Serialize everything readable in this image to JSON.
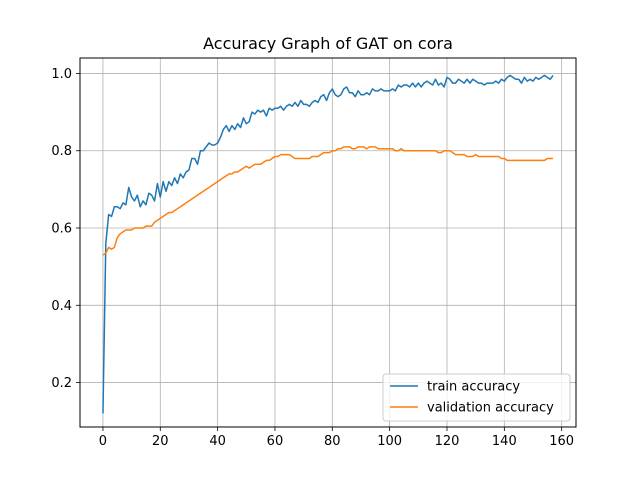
{
  "chart_data": {
    "type": "line",
    "title": "Accuracy Graph of GAT on cora",
    "xlabel": "",
    "ylabel": "",
    "xlim": [
      -8,
      165
    ],
    "ylim": [
      0.085,
      1.04
    ],
    "xticks": [
      0,
      20,
      40,
      60,
      80,
      100,
      120,
      140,
      160
    ],
    "yticks": [
      0.2,
      0.4,
      0.6,
      0.8,
      1.0
    ],
    "ytick_labels": [
      "0.2",
      "0.4",
      "0.6",
      "0.8",
      "1.0"
    ],
    "grid": true,
    "legend_position": "lower-right",
    "series": [
      {
        "name": "train accuracy",
        "color": "#1f77b4",
        "points": [
          [
            0,
            0.12
          ],
          [
            1,
            0.56
          ],
          [
            2,
            0.635
          ],
          [
            3,
            0.63
          ],
          [
            4,
            0.655
          ],
          [
            5,
            0.655
          ],
          [
            6,
            0.65
          ],
          [
            7,
            0.665
          ],
          [
            8,
            0.66
          ],
          [
            9,
            0.705
          ],
          [
            10,
            0.68
          ],
          [
            11,
            0.67
          ],
          [
            12,
            0.685
          ],
          [
            13,
            0.655
          ],
          [
            14,
            0.67
          ],
          [
            15,
            0.66
          ],
          [
            16,
            0.69
          ],
          [
            17,
            0.685
          ],
          [
            18,
            0.67
          ],
          [
            19,
            0.715
          ],
          [
            20,
            0.68
          ],
          [
            21,
            0.72
          ],
          [
            22,
            0.695
          ],
          [
            23,
            0.72
          ],
          [
            24,
            0.71
          ],
          [
            25,
            0.73
          ],
          [
            26,
            0.715
          ],
          [
            27,
            0.74
          ],
          [
            28,
            0.73
          ],
          [
            29,
            0.745
          ],
          [
            30,
            0.75
          ],
          [
            31,
            0.78
          ],
          [
            32,
            0.78
          ],
          [
            33,
            0.765
          ],
          [
            34,
            0.8
          ],
          [
            35,
            0.8
          ],
          [
            36,
            0.81
          ],
          [
            37,
            0.82
          ],
          [
            38,
            0.815
          ],
          [
            39,
            0.815
          ],
          [
            40,
            0.82
          ],
          [
            41,
            0.835
          ],
          [
            42,
            0.855
          ],
          [
            43,
            0.865
          ],
          [
            44,
            0.85
          ],
          [
            45,
            0.865
          ],
          [
            46,
            0.855
          ],
          [
            47,
            0.87
          ],
          [
            48,
            0.86
          ],
          [
            49,
            0.885
          ],
          [
            50,
            0.87
          ],
          [
            51,
            0.875
          ],
          [
            52,
            0.9
          ],
          [
            53,
            0.895
          ],
          [
            54,
            0.905
          ],
          [
            55,
            0.9
          ],
          [
            56,
            0.905
          ],
          [
            57,
            0.89
          ],
          [
            58,
            0.91
          ],
          [
            59,
            0.905
          ],
          [
            60,
            0.91
          ],
          [
            61,
            0.91
          ],
          [
            62,
            0.915
          ],
          [
            63,
            0.905
          ],
          [
            64,
            0.915
          ],
          [
            65,
            0.92
          ],
          [
            66,
            0.915
          ],
          [
            67,
            0.925
          ],
          [
            68,
            0.915
          ],
          [
            69,
            0.93
          ],
          [
            70,
            0.92
          ],
          [
            71,
            0.92
          ],
          [
            72,
            0.915
          ],
          [
            73,
            0.925
          ],
          [
            74,
            0.93
          ],
          [
            75,
            0.925
          ],
          [
            76,
            0.94
          ],
          [
            77,
            0.945
          ],
          [
            78,
            0.93
          ],
          [
            79,
            0.95
          ],
          [
            80,
            0.96
          ],
          [
            81,
            0.945
          ],
          [
            82,
            0.94
          ],
          [
            83,
            0.945
          ],
          [
            84,
            0.96
          ],
          [
            85,
            0.965
          ],
          [
            86,
            0.95
          ],
          [
            87,
            0.95
          ],
          [
            88,
            0.94
          ],
          [
            89,
            0.955
          ],
          [
            90,
            0.945
          ],
          [
            91,
            0.945
          ],
          [
            92,
            0.95
          ],
          [
            93,
            0.945
          ],
          [
            94,
            0.96
          ],
          [
            95,
            0.955
          ],
          [
            96,
            0.955
          ],
          [
            97,
            0.96
          ],
          [
            98,
            0.955
          ],
          [
            99,
            0.955
          ],
          [
            100,
            0.955
          ],
          [
            101,
            0.96
          ],
          [
            102,
            0.955
          ],
          [
            103,
            0.97
          ],
          [
            104,
            0.965
          ],
          [
            105,
            0.97
          ],
          [
            106,
            0.97
          ],
          [
            107,
            0.965
          ],
          [
            108,
            0.975
          ],
          [
            109,
            0.965
          ],
          [
            110,
            0.975
          ],
          [
            111,
            0.965
          ],
          [
            112,
            0.975
          ],
          [
            113,
            0.98
          ],
          [
            114,
            0.975
          ],
          [
            115,
            0.97
          ],
          [
            116,
            0.985
          ],
          [
            117,
            0.97
          ],
          [
            118,
            0.975
          ],
          [
            119,
            0.965
          ],
          [
            120,
            0.99
          ],
          [
            121,
            0.985
          ],
          [
            122,
            0.975
          ],
          [
            123,
            0.975
          ],
          [
            124,
            0.985
          ],
          [
            125,
            0.98
          ],
          [
            126,
            0.975
          ],
          [
            127,
            0.985
          ],
          [
            128,
            0.975
          ],
          [
            129,
            0.985
          ],
          [
            130,
            0.98
          ],
          [
            131,
            0.975
          ],
          [
            132,
            0.975
          ],
          [
            133,
            0.97
          ],
          [
            134,
            0.975
          ],
          [
            135,
            0.975
          ],
          [
            136,
            0.975
          ],
          [
            137,
            0.98
          ],
          [
            138,
            0.975
          ],
          [
            139,
            0.985
          ],
          [
            140,
            0.98
          ],
          [
            141,
            0.99
          ],
          [
            142,
            0.995
          ],
          [
            143,
            0.99
          ],
          [
            144,
            0.985
          ],
          [
            145,
            0.985
          ],
          [
            146,
            0.975
          ],
          [
            147,
            0.99
          ],
          [
            148,
            0.98
          ],
          [
            149,
            0.985
          ],
          [
            150,
            0.98
          ],
          [
            151,
            0.99
          ],
          [
            152,
            0.985
          ],
          [
            153,
            0.99
          ],
          [
            154,
            0.995
          ],
          [
            155,
            0.99
          ],
          [
            156,
            0.985
          ],
          [
            157,
            0.995
          ]
        ]
      },
      {
        "name": "validation accuracy",
        "color": "#ff7f0e",
        "points": [
          [
            0,
            0.53
          ],
          [
            1,
            0.535
          ],
          [
            2,
            0.55
          ],
          [
            3,
            0.545
          ],
          [
            4,
            0.55
          ],
          [
            5,
            0.575
          ],
          [
            6,
            0.585
          ],
          [
            7,
            0.59
          ],
          [
            8,
            0.595
          ],
          [
            9,
            0.595
          ],
          [
            10,
            0.595
          ],
          [
            11,
            0.6
          ],
          [
            12,
            0.6
          ],
          [
            13,
            0.6
          ],
          [
            14,
            0.6
          ],
          [
            15,
            0.605
          ],
          [
            16,
            0.605
          ],
          [
            17,
            0.605
          ],
          [
            18,
            0.615
          ],
          [
            19,
            0.62
          ],
          [
            20,
            0.625
          ],
          [
            21,
            0.63
          ],
          [
            22,
            0.635
          ],
          [
            23,
            0.64
          ],
          [
            24,
            0.64
          ],
          [
            25,
            0.645
          ],
          [
            26,
            0.65
          ],
          [
            27,
            0.655
          ],
          [
            28,
            0.66
          ],
          [
            29,
            0.665
          ],
          [
            30,
            0.67
          ],
          [
            31,
            0.675
          ],
          [
            32,
            0.68
          ],
          [
            33,
            0.685
          ],
          [
            34,
            0.69
          ],
          [
            35,
            0.695
          ],
          [
            36,
            0.7
          ],
          [
            37,
            0.705
          ],
          [
            38,
            0.71
          ],
          [
            39,
            0.715
          ],
          [
            40,
            0.72
          ],
          [
            41,
            0.725
          ],
          [
            42,
            0.73
          ],
          [
            43,
            0.735
          ],
          [
            44,
            0.74
          ],
          [
            45,
            0.74
          ],
          [
            46,
            0.745
          ],
          [
            47,
            0.745
          ],
          [
            48,
            0.75
          ],
          [
            49,
            0.755
          ],
          [
            50,
            0.76
          ],
          [
            51,
            0.755
          ],
          [
            52,
            0.76
          ],
          [
            53,
            0.765
          ],
          [
            54,
            0.765
          ],
          [
            55,
            0.765
          ],
          [
            56,
            0.77
          ],
          [
            57,
            0.775
          ],
          [
            58,
            0.775
          ],
          [
            59,
            0.78
          ],
          [
            60,
            0.785
          ],
          [
            61,
            0.785
          ],
          [
            62,
            0.79
          ],
          [
            63,
            0.79
          ],
          [
            64,
            0.79
          ],
          [
            65,
            0.79
          ],
          [
            66,
            0.785
          ],
          [
            67,
            0.78
          ],
          [
            68,
            0.78
          ],
          [
            69,
            0.78
          ],
          [
            70,
            0.78
          ],
          [
            71,
            0.78
          ],
          [
            72,
            0.78
          ],
          [
            73,
            0.785
          ],
          [
            74,
            0.785
          ],
          [
            75,
            0.785
          ],
          [
            76,
            0.79
          ],
          [
            77,
            0.795
          ],
          [
            78,
            0.795
          ],
          [
            79,
            0.795
          ],
          [
            80,
            0.8
          ],
          [
            81,
            0.8
          ],
          [
            82,
            0.805
          ],
          [
            83,
            0.805
          ],
          [
            84,
            0.81
          ],
          [
            85,
            0.81
          ],
          [
            86,
            0.81
          ],
          [
            87,
            0.805
          ],
          [
            88,
            0.805
          ],
          [
            89,
            0.81
          ],
          [
            90,
            0.81
          ],
          [
            91,
            0.81
          ],
          [
            92,
            0.805
          ],
          [
            93,
            0.81
          ],
          [
            94,
            0.81
          ],
          [
            95,
            0.81
          ],
          [
            96,
            0.805
          ],
          [
            97,
            0.805
          ],
          [
            98,
            0.805
          ],
          [
            99,
            0.805
          ],
          [
            100,
            0.805
          ],
          [
            101,
            0.805
          ],
          [
            102,
            0.8
          ],
          [
            103,
            0.8
          ],
          [
            104,
            0.805
          ],
          [
            105,
            0.8
          ],
          [
            106,
            0.8
          ],
          [
            107,
            0.8
          ],
          [
            108,
            0.8
          ],
          [
            109,
            0.8
          ],
          [
            110,
            0.8
          ],
          [
            111,
            0.8
          ],
          [
            112,
            0.8
          ],
          [
            113,
            0.8
          ],
          [
            114,
            0.8
          ],
          [
            115,
            0.8
          ],
          [
            116,
            0.8
          ],
          [
            117,
            0.795
          ],
          [
            118,
            0.795
          ],
          [
            119,
            0.8
          ],
          [
            120,
            0.8
          ],
          [
            121,
            0.8
          ],
          [
            122,
            0.795
          ],
          [
            123,
            0.79
          ],
          [
            124,
            0.79
          ],
          [
            125,
            0.79
          ],
          [
            126,
            0.79
          ],
          [
            127,
            0.785
          ],
          [
            128,
            0.785
          ],
          [
            129,
            0.785
          ],
          [
            130,
            0.79
          ],
          [
            131,
            0.785
          ],
          [
            132,
            0.785
          ],
          [
            133,
            0.785
          ],
          [
            134,
            0.785
          ],
          [
            135,
            0.785
          ],
          [
            136,
            0.785
          ],
          [
            137,
            0.785
          ],
          [
            138,
            0.785
          ],
          [
            139,
            0.78
          ],
          [
            140,
            0.78
          ],
          [
            141,
            0.775
          ],
          [
            142,
            0.775
          ],
          [
            143,
            0.775
          ],
          [
            144,
            0.775
          ],
          [
            145,
            0.775
          ],
          [
            146,
            0.775
          ],
          [
            147,
            0.775
          ],
          [
            148,
            0.775
          ],
          [
            149,
            0.775
          ],
          [
            150,
            0.775
          ],
          [
            151,
            0.775
          ],
          [
            152,
            0.775
          ],
          [
            153,
            0.775
          ],
          [
            154,
            0.775
          ],
          [
            155,
            0.78
          ],
          [
            156,
            0.78
          ],
          [
            157,
            0.78
          ]
        ]
      }
    ]
  }
}
